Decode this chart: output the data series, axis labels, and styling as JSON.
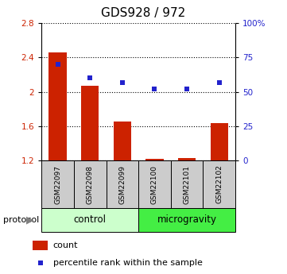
{
  "title": "GDS928 / 972",
  "samples": [
    "GSM22097",
    "GSM22098",
    "GSM22099",
    "GSM22100",
    "GSM22101",
    "GSM22102"
  ],
  "count_values": [
    2.46,
    2.07,
    1.65,
    1.22,
    1.23,
    1.63
  ],
  "percentile_values": [
    70,
    60,
    57,
    52,
    52,
    57
  ],
  "ylim_left": [
    1.2,
    2.8
  ],
  "ylim_right": [
    0,
    100
  ],
  "yticks_left": [
    1.2,
    1.6,
    2.0,
    2.4,
    2.8
  ],
  "ytick_labels_left": [
    "1.2",
    "1.6",
    "2",
    "2.4",
    "2.8"
  ],
  "yticks_right": [
    0,
    25,
    50,
    75,
    100
  ],
  "ytick_labels_right": [
    "0",
    "25",
    "50",
    "75",
    "100%"
  ],
  "bar_color": "#cc2200",
  "dot_color": "#2222cc",
  "bar_width": 0.55,
  "grid_color": "#000000",
  "control_color": "#ccffcc",
  "microgravity_color": "#44ee44",
  "protocol_label": "protocol",
  "legend_count_label": "count",
  "legend_percentile_label": "percentile rank within the sample",
  "title_fontsize": 11,
  "axis_color_left": "#cc2200",
  "axis_color_right": "#2222cc",
  "tick_label_bg": "#cccccc",
  "bar_bottom": 1.2
}
